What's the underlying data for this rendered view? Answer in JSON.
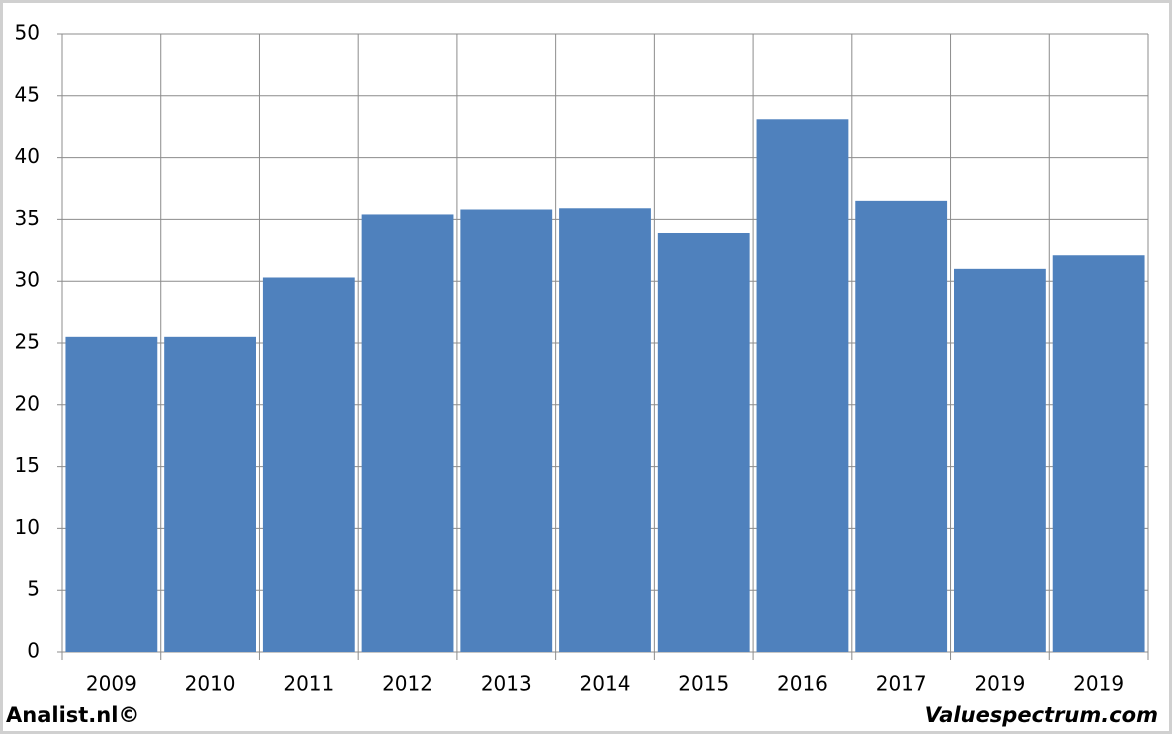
{
  "chart_data": {
    "type": "bar",
    "categories": [
      "2009",
      "2010",
      "2011",
      "2012",
      "2013",
      "2014",
      "2015",
      "2016",
      "2017",
      "2019",
      "2019"
    ],
    "values": [
      25.5,
      25.5,
      30.3,
      35.4,
      35.8,
      35.9,
      33.9,
      43.1,
      36.5,
      31.0,
      32.1
    ],
    "color": "#4f81bd",
    "ylim": [
      0,
      50
    ],
    "yticks": [
      0,
      5,
      10,
      15,
      20,
      25,
      30,
      35,
      40,
      45,
      50
    ],
    "grid": true
  },
  "footer": {
    "left": "Analist.nl©",
    "right": "Valuespectrum.com"
  }
}
